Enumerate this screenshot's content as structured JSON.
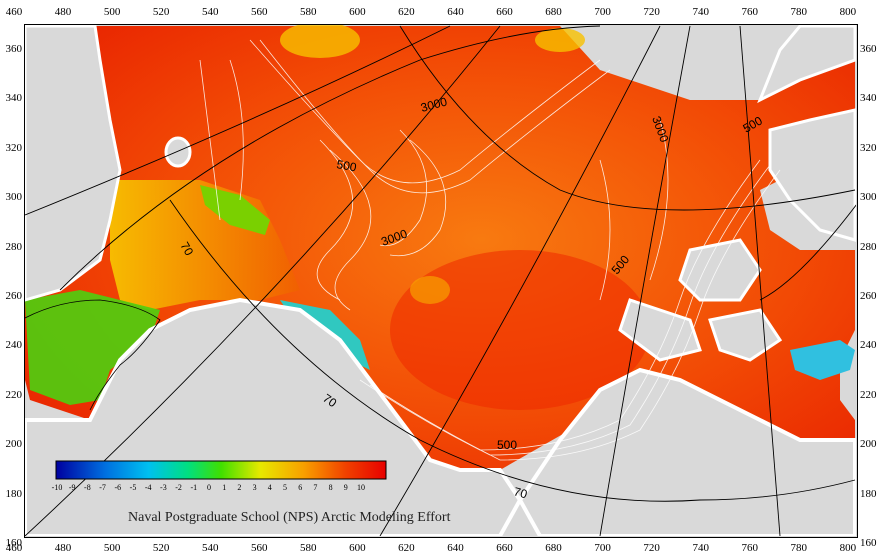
{
  "map": {
    "caption": "Naval Postgraduate School (NPS) Arctic Modeling Effort",
    "x_axis": {
      "ticks": [
        "460",
        "480",
        "500",
        "520",
        "540",
        "560",
        "580",
        "600",
        "620",
        "640",
        "660",
        "680",
        "700",
        "720",
        "740",
        "760",
        "780",
        "800"
      ]
    },
    "y_axis": {
      "ticks": [
        "360",
        "340",
        "320",
        "300",
        "280",
        "260",
        "240",
        "220",
        "200",
        "180",
        "160"
      ]
    },
    "contour_labels": [
      "3000",
      "3000",
      "3000",
      "500",
      "500",
      "500",
      "500",
      "70",
      "70",
      "70"
    ],
    "colorbar": {
      "ticks": [
        "-10",
        "-9",
        "-8",
        "-7",
        "-6",
        "-5",
        "-4",
        "-3",
        "-2",
        "-1",
        "0",
        "1",
        "2",
        "3",
        "4",
        "5",
        "6",
        "7",
        "8",
        "9",
        "10"
      ],
      "colors": [
        "#0000a0",
        "#0040c0",
        "#0080e0",
        "#00c0f0",
        "#00e0a0",
        "#00e000",
        "#80e000",
        "#e0e000",
        "#f0a000",
        "#f06000",
        "#f00000"
      ]
    },
    "palette": {
      "ocean_hot": "#f02000",
      "ocean_warm": "#f86000",
      "ocean_mid": "#f8b000",
      "ocean_green": "#60d000",
      "ocean_cyan": "#20c0d0",
      "land": "#d9d9d9",
      "ice_edge": "#ffffff"
    }
  }
}
